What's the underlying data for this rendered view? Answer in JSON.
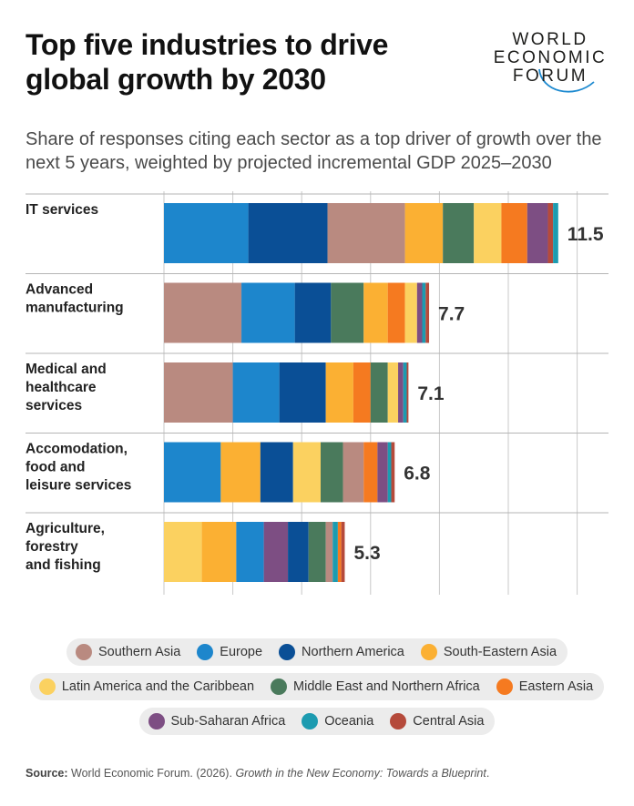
{
  "title": "Top five industries to drive global growth by 2030",
  "logo": {
    "lines": [
      "WORLD",
      "ECONOMIC",
      "FORUM"
    ]
  },
  "subtitle": "Share of responses citing each sector as a top driver of growth over the next 5 years, weighted by projected incremental GDP 2025–2030",
  "colors": {
    "Southern Asia": "#b98a80",
    "Europe": "#1d86cc",
    "Northern America": "#0a4f96",
    "South-Eastern Asia": "#fbb033",
    "Latin America and the Caribbean": "#fbd160",
    "Middle East and Northern Africa": "#4a7a5c",
    "Eastern Asia": "#f57a20",
    "Sub-Saharan Africa": "#7d4e83",
    "Oceania": "#1c9bb0",
    "Central Asia": "#b54a3b"
  },
  "chart_data": {
    "type": "bar",
    "orientation": "horizontal",
    "stacked": true,
    "xlim": [
      0,
      12
    ],
    "grid": true,
    "categories": [
      "IT services",
      "Advanced manufacturing",
      "Medical and healthcare services",
      "Accomodation, food and leisure services",
      "Agriculture, forestry and fishing"
    ],
    "category_lines": [
      [
        "IT services"
      ],
      [
        "Advanced",
        "manufacturing"
      ],
      [
        "Medical and",
        "healthcare",
        "services"
      ],
      [
        "Accomodation,",
        "food and",
        "leisure services"
      ],
      [
        "Agriculture,",
        "forestry",
        "and fishing"
      ]
    ],
    "totals": [
      "11.5",
      "7.7",
      "7.1",
      "6.8",
      "5.3"
    ],
    "bars": [
      [
        [
          "Europe",
          2.45
        ],
        [
          "Northern America",
          2.3
        ],
        [
          "Southern Asia",
          2.25
        ],
        [
          "South-Eastern Asia",
          1.1
        ],
        [
          "Middle East and Northern Africa",
          0.9
        ],
        [
          "Latin America and the Caribbean",
          0.8
        ],
        [
          "Eastern Asia",
          0.75
        ],
        [
          "Sub-Saharan Africa",
          0.6
        ],
        [
          "Central Asia",
          0.15
        ],
        [
          "Oceania",
          0.15
        ]
      ],
      [
        [
          "Southern Asia",
          2.25
        ],
        [
          "Europe",
          1.55
        ],
        [
          "Northern America",
          1.05
        ],
        [
          "Middle East and Northern Africa",
          0.95
        ],
        [
          "South-Eastern Asia",
          0.7
        ],
        [
          "Eastern Asia",
          0.5
        ],
        [
          "Latin America and the Caribbean",
          0.35
        ],
        [
          "Sub-Saharan Africa",
          0.15
        ],
        [
          "Oceania",
          0.1
        ],
        [
          "Central Asia",
          0.1
        ]
      ],
      [
        [
          "Southern Asia",
          2.0
        ],
        [
          "Europe",
          1.35
        ],
        [
          "Northern America",
          1.35
        ],
        [
          "South-Eastern Asia",
          0.8
        ],
        [
          "Eastern Asia",
          0.5
        ],
        [
          "Middle East and Northern Africa",
          0.5
        ],
        [
          "Latin America and the Caribbean",
          0.3
        ],
        [
          "Sub-Saharan Africa",
          0.15
        ],
        [
          "Oceania",
          0.1
        ],
        [
          "Central Asia",
          0.05
        ]
      ],
      [
        [
          "Europe",
          1.65
        ],
        [
          "South-Eastern Asia",
          1.15
        ],
        [
          "Northern America",
          0.95
        ],
        [
          "Latin America and the Caribbean",
          0.8
        ],
        [
          "Middle East and Northern Africa",
          0.65
        ],
        [
          "Southern Asia",
          0.6
        ],
        [
          "Eastern Asia",
          0.4
        ],
        [
          "Sub-Saharan Africa",
          0.3
        ],
        [
          "Oceania",
          0.1
        ],
        [
          "Central Asia",
          0.1
        ]
      ],
      [
        [
          "Latin America and the Caribbean",
          1.1
        ],
        [
          "South-Eastern Asia",
          1.0
        ],
        [
          "Europe",
          0.8
        ],
        [
          "Sub-Saharan Africa",
          0.7
        ],
        [
          "Northern America",
          0.6
        ],
        [
          "Middle East and Northern Africa",
          0.5
        ],
        [
          "Southern Asia",
          0.2
        ],
        [
          "Oceania",
          0.15
        ],
        [
          "Eastern Asia",
          0.1
        ],
        [
          "Central Asia",
          0.1
        ]
      ]
    ]
  },
  "legend": [
    [
      "Southern Asia",
      "Europe",
      "Northern America",
      "South-Eastern Asia"
    ],
    [
      "Latin America and the Caribbean",
      "Middle East and Northern Africa",
      "Eastern Asia"
    ],
    [
      "Sub-Saharan Africa",
      "Oceania",
      "Central Asia"
    ]
  ],
  "source": {
    "label": "Source:",
    "text": "World Economic Forum. (2026).",
    "italic": "Growth in the New Economy: Towards a Blueprint",
    "end": "."
  }
}
